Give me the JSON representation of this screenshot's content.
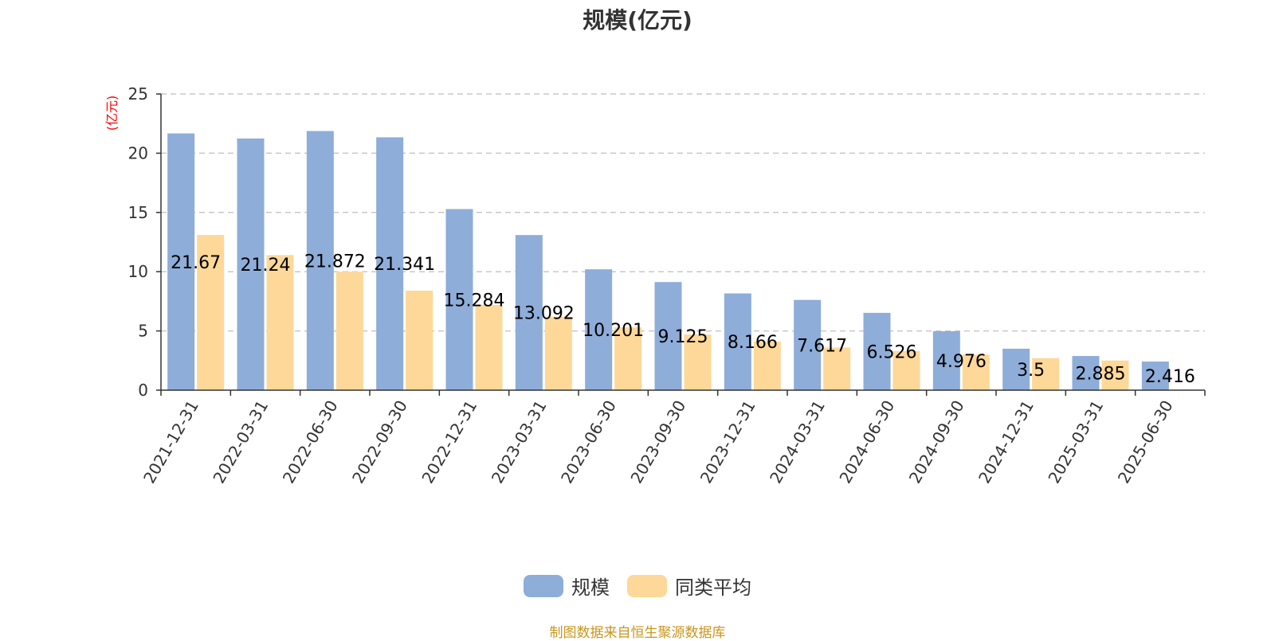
{
  "title": "规模(亿元)",
  "source_note": "制图数据来自恒生聚源数据库",
  "colors": {
    "scale": "#8eadd9",
    "avg": "#fdd898",
    "unit": "#ff0000",
    "source": "#c8961e"
  },
  "chart_data": {
    "type": "bar",
    "title": "规模(亿元)",
    "ylabel": "(亿元)",
    "ylim": [
      0,
      25
    ],
    "yticks": [
      0,
      5,
      10,
      15,
      20,
      25
    ],
    "grid": true,
    "legend_position": "bottom-center",
    "categories": [
      "2021-12-31",
      "2022-03-31",
      "2022-06-30",
      "2022-09-30",
      "2022-12-31",
      "2023-03-31",
      "2023-06-30",
      "2023-09-30",
      "2023-12-31",
      "2024-03-31",
      "2024-06-30",
      "2024-09-30",
      "2024-12-31",
      "2025-03-31",
      "2025-06-30"
    ],
    "series": [
      {
        "name": "规模",
        "values": [
          21.67,
          21.24,
          21.872,
          21.341,
          15.284,
          13.092,
          10.201,
          9.125,
          8.166,
          7.617,
          6.526,
          4.976,
          3.5,
          2.885,
          2.416
        ],
        "labels": [
          "21.67",
          "21.24",
          "21.872",
          "21.341",
          "15.284",
          "13.092",
          "10.201",
          "9.125",
          "8.166",
          "7.617",
          "6.526",
          "4.976",
          "3.5",
          "2.885",
          "2.416"
        ]
      },
      {
        "name": "同类平均",
        "values": [
          13.1,
          11.4,
          10.0,
          8.4,
          7.2,
          6.2,
          5.3,
          4.7,
          4.1,
          3.6,
          3.3,
          3.0,
          2.7,
          2.5,
          null
        ]
      }
    ]
  }
}
